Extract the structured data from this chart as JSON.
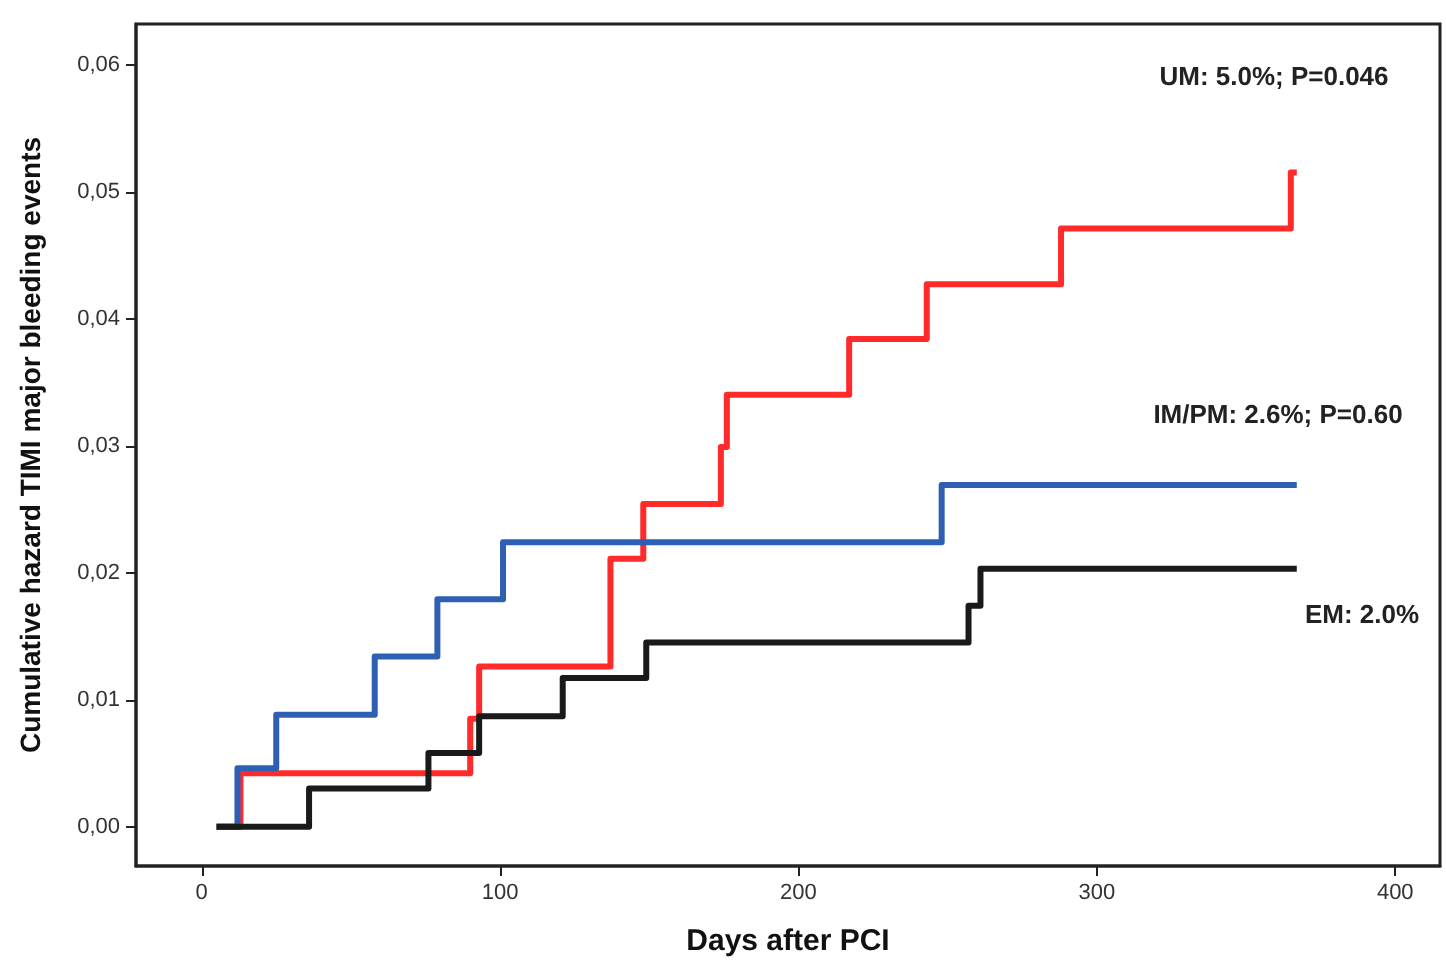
{
  "chart_data": {
    "type": "step",
    "xlabel": "Days after PCI",
    "ylabel": "Cumulative hazard TIMI major bleeding events",
    "xlim": [
      -22,
      415
    ],
    "xticks": [
      0,
      100,
      200,
      300,
      400
    ],
    "ylim": [
      -0.0031,
      0.0632
    ],
    "yticks": [
      {
        "value": 0,
        "label": "0,00"
      },
      {
        "value": 0.01,
        "label": "0,01"
      },
      {
        "value": 0.02,
        "label": "0,02"
      },
      {
        "value": 0.03,
        "label": "0,03"
      },
      {
        "value": 0.04,
        "label": "0,04"
      },
      {
        "value": 0.05,
        "label": "0,05"
      },
      {
        "value": 0.06,
        "label": "0,06"
      }
    ],
    "grid": false,
    "series": [
      {
        "color": "#ff2a2a",
        "x": [
          5,
          13,
          90,
          93,
          137,
          148,
          174,
          176,
          217,
          243,
          288,
          365,
          367
        ],
        "values": [
          0,
          0.0042,
          0.0085,
          0.0126,
          0.0211,
          0.0254,
          0.0299,
          0.034,
          0.0384,
          0.0427,
          0.0471,
          0.0515,
          0.0515
        ]
      },
      {
        "color": "#2f5fb3",
        "x": [
          5,
          12,
          25,
          58,
          79,
          101,
          248,
          367
        ],
        "values": [
          0,
          0.0046,
          0.0088,
          0.0134,
          0.0179,
          0.0224,
          0.0269,
          0.0269
        ]
      },
      {
        "color": "#1a1a1a",
        "x": [
          5,
          36,
          76,
          93,
          121,
          149,
          257,
          261,
          367
        ],
        "values": [
          0,
          0.003,
          0.0058,
          0.0087,
          0.0117,
          0.0145,
          0.0174,
          0.0203,
          0.0203
        ]
      }
    ],
    "annotations": [
      "UM: 5.0%; P=0.046",
      "IM/PM: 2.6%; P=0.60",
      "EM: 2.0%"
    ]
  }
}
